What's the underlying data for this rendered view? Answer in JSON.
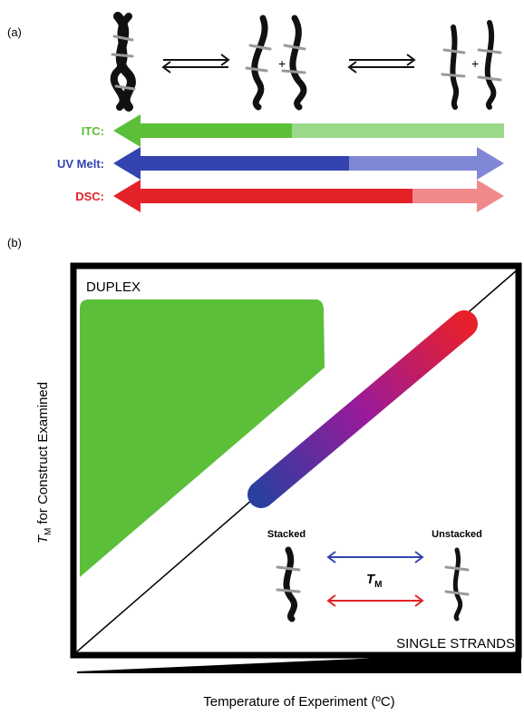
{
  "panel_a": {
    "label": "(a)",
    "techniques": [
      "ITC:",
      "UV Melt:",
      "DSC:"
    ]
  },
  "panel_b": {
    "label": "(b)",
    "region_top": "DUPLEX",
    "region_bottom": "SINGLE STRANDS",
    "y_axis_label": {
      "symbol": "T",
      "subscript": "M",
      "text": "for Construct Examined"
    },
    "x_axis_label": "Temperature of Experiment (ºC)",
    "inset": {
      "left": "Stacked",
      "right": "Unstacked",
      "center": {
        "symbol": "T",
        "subscript": "M"
      }
    }
  }
}
